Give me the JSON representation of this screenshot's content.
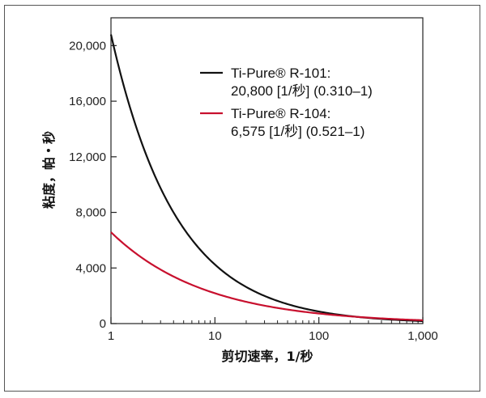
{
  "chart_data": {
    "type": "line",
    "xscale": "log",
    "xlim": [
      1,
      1000
    ],
    "ylim": [
      0,
      22000
    ],
    "xlabel": "剪切速率，1/秒",
    "ylabel": "粘度，帕・秒",
    "x_ticks": [
      1,
      10,
      100,
      1000
    ],
    "x_tick_labels": [
      "1",
      "10",
      "100",
      "1,000"
    ],
    "y_ticks": [
      0,
      4000,
      8000,
      12000,
      16000,
      20000
    ],
    "y_tick_labels": [
      "0",
      "4,000",
      "8,000",
      "12,000",
      "16,000",
      "20,000"
    ],
    "grid": false,
    "legend_position": "top-right",
    "series": [
      {
        "name": "Ti-Pure® R-101:",
        "detail": "20,800 [1/秒] (0.310–1)",
        "color": "#111111",
        "model": "power-law",
        "K": 20800,
        "n": 0.31
      },
      {
        "name": "Ti-Pure® R-104:",
        "detail": "6,575 [1/秒] (0.521–1)",
        "color": "#c8102e",
        "model": "power-law",
        "K": 6575,
        "n": 0.521
      }
    ]
  }
}
